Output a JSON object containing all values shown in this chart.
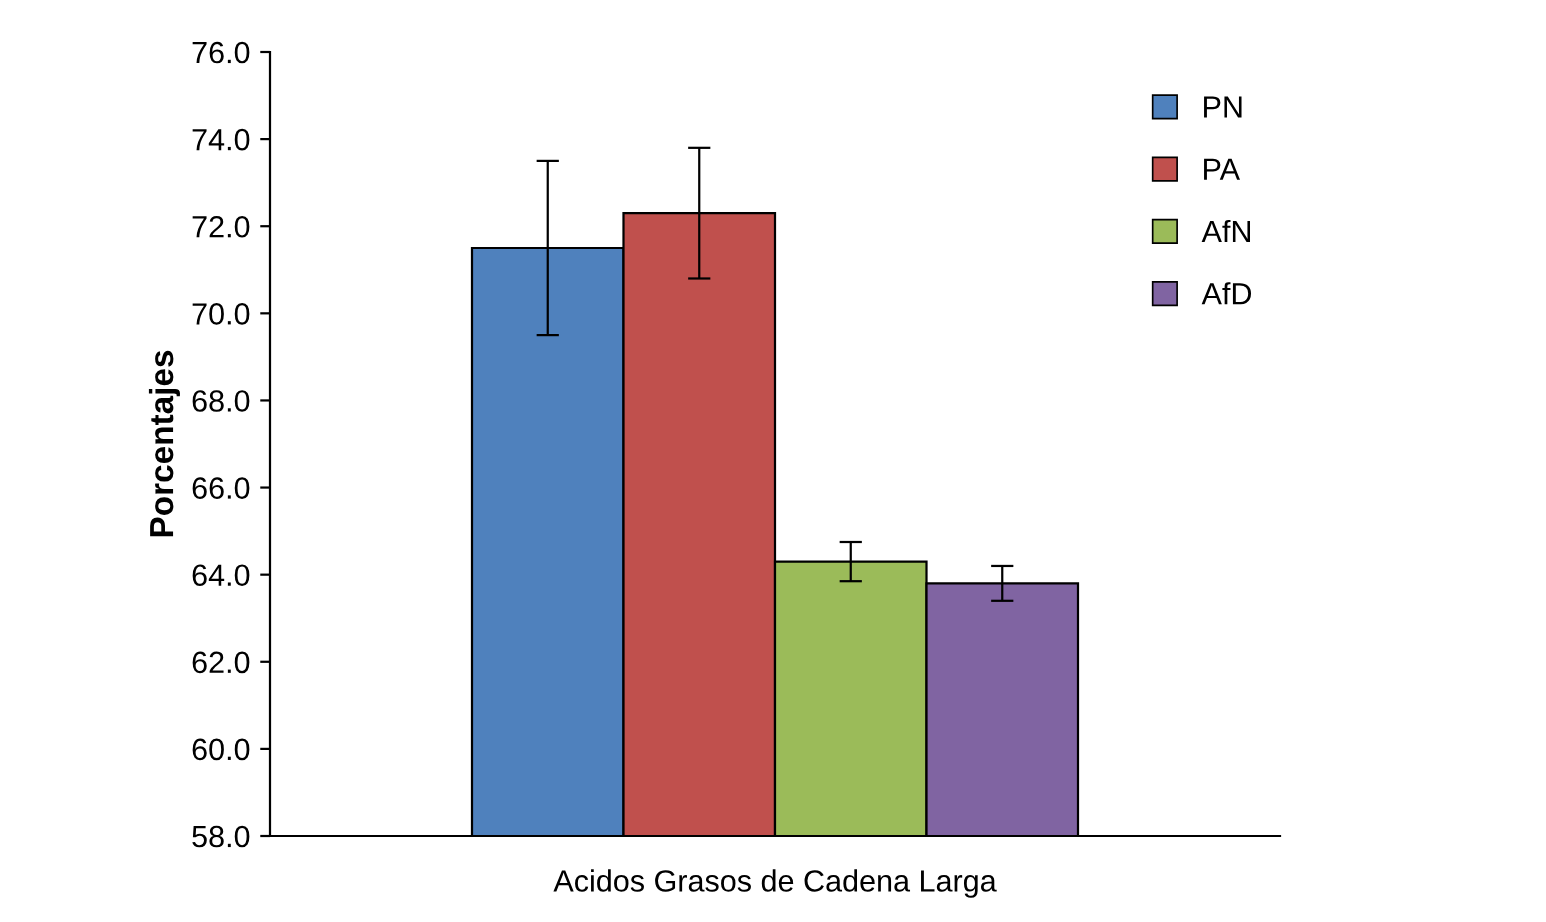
{
  "chart_data": {
    "type": "bar",
    "ylabel": "Porcentajes",
    "categories": [
      "Acidos Grasos de Cadena Larga"
    ],
    "series": [
      {
        "name": "PN",
        "color": "#4f81bd",
        "values": [
          71.5
        ],
        "errors": [
          2.0
        ]
      },
      {
        "name": "PA",
        "color": "#c0504d",
        "values": [
          72.3
        ],
        "errors": [
          1.5
        ]
      },
      {
        "name": "AfN",
        "color": "#9bbb59",
        "values": [
          64.3
        ],
        "errors": [
          0.45
        ]
      },
      {
        "name": "AfD",
        "color": "#8064a2",
        "values": [
          63.8
        ],
        "errors": [
          0.4
        ]
      }
    ],
    "ylim": [
      58,
      76
    ],
    "yticks": [
      {
        "value": 58,
        "label": "58.0"
      },
      {
        "value": 60,
        "label": "60.0"
      },
      {
        "value": 62,
        "label": "62.0"
      },
      {
        "value": 64,
        "label": "64.0"
      },
      {
        "value": 66,
        "label": "66.0"
      },
      {
        "value": 68,
        "label": "68.0"
      },
      {
        "value": 70,
        "label": "70.0"
      },
      {
        "value": 72,
        "label": "72.0"
      },
      {
        "value": 74,
        "label": "74.0"
      },
      {
        "value": 76,
        "label": "76.0"
      }
    ],
    "grid": false,
    "legend": "top right"
  }
}
